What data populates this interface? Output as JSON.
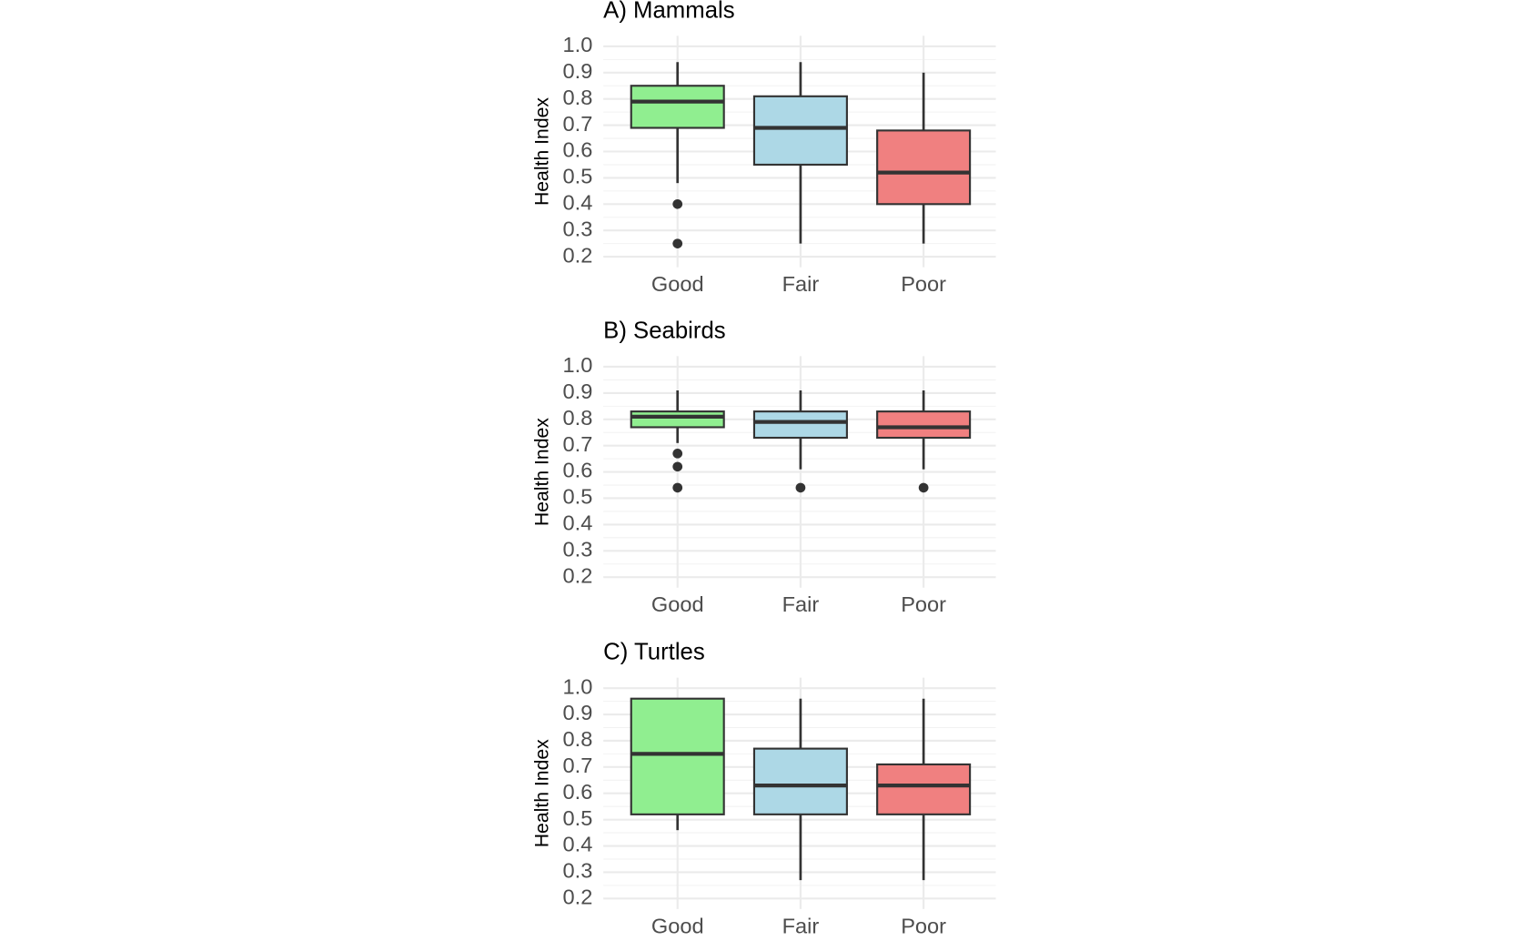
{
  "chart_data": [
    {
      "type": "box",
      "title": "A) Mammals",
      "y_label": "Health Index",
      "categories": [
        "Good",
        "Fair",
        "Poor"
      ],
      "colors": [
        "#90ee90",
        "#add8e6",
        "#f08080"
      ],
      "boxes": [
        {
          "whislo": 0.48,
          "q1": 0.69,
          "med": 0.79,
          "q3": 0.85,
          "whishi": 0.94,
          "fliers": [
            0.4,
            0.25
          ]
        },
        {
          "whislo": 0.25,
          "q1": 0.55,
          "med": 0.69,
          "q3": 0.81,
          "whishi": 0.94,
          "fliers": []
        },
        {
          "whislo": 0.25,
          "q1": 0.4,
          "med": 0.52,
          "q3": 0.68,
          "whishi": 0.9,
          "fliers": []
        }
      ],
      "ylim": [
        0.16,
        1.04
      ],
      "yticks": [
        {
          "value": 0.2,
          "label": "0.2"
        },
        {
          "value": 0.3,
          "label": "0.3"
        },
        {
          "value": 0.4,
          "label": "0.4"
        },
        {
          "value": 0.5,
          "label": "0.5"
        },
        {
          "value": 0.6,
          "label": "0.6"
        },
        {
          "value": 0.7,
          "label": "0.7"
        },
        {
          "value": 0.8,
          "label": "0.8"
        },
        {
          "value": 0.9,
          "label": "0.9"
        },
        {
          "value": 1.0,
          "label": "1.0"
        }
      ],
      "grid": true
    },
    {
      "type": "box",
      "title": "B) Seabirds",
      "y_label": "Health Index",
      "categories": [
        "Good",
        "Fair",
        "Poor"
      ],
      "colors": [
        "#90ee90",
        "#add8e6",
        "#f08080"
      ],
      "boxes": [
        {
          "whislo": 0.71,
          "q1": 0.77,
          "med": 0.81,
          "q3": 0.83,
          "whishi": 0.91,
          "fliers": [
            0.67,
            0.62,
            0.54
          ]
        },
        {
          "whislo": 0.61,
          "q1": 0.73,
          "med": 0.79,
          "q3": 0.83,
          "whishi": 0.91,
          "fliers": [
            0.54
          ]
        },
        {
          "whislo": 0.61,
          "q1": 0.73,
          "med": 0.77,
          "q3": 0.83,
          "whishi": 0.91,
          "fliers": [
            0.54
          ]
        }
      ],
      "ylim": [
        0.16,
        1.04
      ],
      "yticks": [
        {
          "value": 0.2,
          "label": "0.2"
        },
        {
          "value": 0.3,
          "label": "0.3"
        },
        {
          "value": 0.4,
          "label": "0.4"
        },
        {
          "value": 0.5,
          "label": "0.5"
        },
        {
          "value": 0.6,
          "label": "0.6"
        },
        {
          "value": 0.7,
          "label": "0.7"
        },
        {
          "value": 0.8,
          "label": "0.8"
        },
        {
          "value": 0.9,
          "label": "0.9"
        },
        {
          "value": 1.0,
          "label": "1.0"
        }
      ],
      "grid": true
    },
    {
      "type": "box",
      "title": "C) Turtles",
      "y_label": "Health Index",
      "categories": [
        "Good",
        "Fair",
        "Poor"
      ],
      "colors": [
        "#90ee90",
        "#add8e6",
        "#f08080"
      ],
      "boxes": [
        {
          "whislo": 0.46,
          "q1": 0.52,
          "med": 0.75,
          "q3": 0.96,
          "whishi": 0.96,
          "fliers": []
        },
        {
          "whislo": 0.27,
          "q1": 0.52,
          "med": 0.63,
          "q3": 0.77,
          "whishi": 0.96,
          "fliers": []
        },
        {
          "whislo": 0.27,
          "q1": 0.52,
          "med": 0.63,
          "q3": 0.71,
          "whishi": 0.96,
          "fliers": []
        }
      ],
      "ylim": [
        0.16,
        1.04
      ],
      "yticks": [
        {
          "value": 0.2,
          "label": "0.2"
        },
        {
          "value": 0.3,
          "label": "0.3"
        },
        {
          "value": 0.4,
          "label": "0.4"
        },
        {
          "value": 0.5,
          "label": "0.5"
        },
        {
          "value": 0.6,
          "label": "0.6"
        },
        {
          "value": 0.7,
          "label": "0.7"
        },
        {
          "value": 0.8,
          "label": "0.8"
        },
        {
          "value": 0.9,
          "label": "0.9"
        },
        {
          "value": 1.0,
          "label": "1.0"
        }
      ],
      "grid": true
    }
  ]
}
